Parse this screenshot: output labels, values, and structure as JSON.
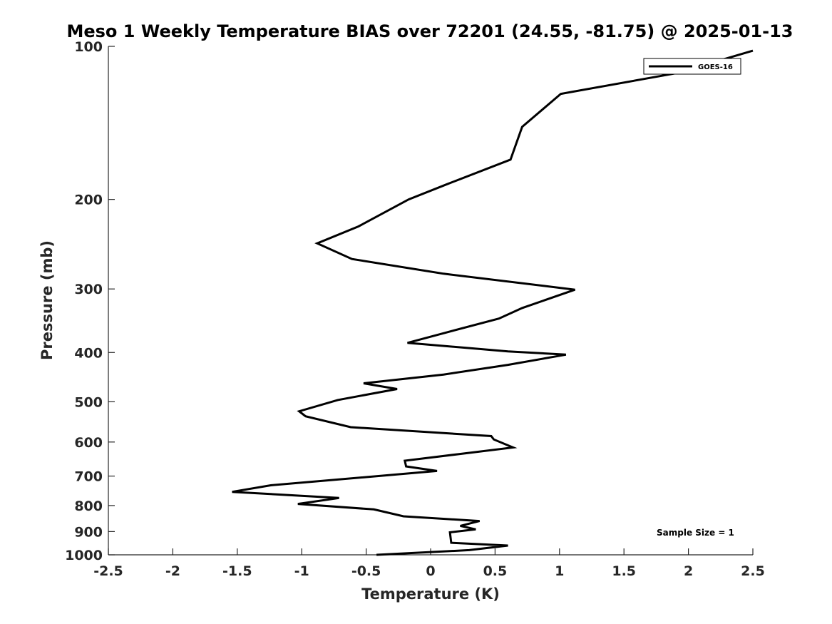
{
  "chart_data": {
    "type": "line",
    "title": "Meso 1 Weekly Temperature BIAS over 72201 (24.55, -81.75) @ 2025-01-13",
    "xlabel": "Temperature (K)",
    "ylabel": "Pressure (mb)",
    "xlim": [
      -2.5,
      2.5
    ],
    "ylim": [
      100,
      1000
    ],
    "yscale": "log",
    "y_reversed": true,
    "grid": false,
    "legend_position": "top-right",
    "x_ticks": [
      -2.5,
      -2,
      -1.5,
      -1,
      -0.5,
      0,
      0.5,
      1,
      1.5,
      2,
      2.5
    ],
    "x_tick_labels": [
      "-2.5",
      "-2",
      "-1.5",
      "-1",
      "-0.5",
      "0",
      "0.5",
      "1",
      "1.5",
      "2",
      "2.5"
    ],
    "y_ticks": [
      100,
      200,
      300,
      400,
      500,
      600,
      700,
      800,
      900,
      1000
    ],
    "y_tick_labels": [
      "100",
      "200",
      "300",
      "400",
      "500",
      "600",
      "700",
      "800",
      "900",
      "1000"
    ],
    "series": [
      {
        "name": "GOES-16",
        "color": "#000000",
        "points": [
          {
            "x": 2.5,
            "y": 102
          },
          {
            "x": 1.9,
            "y": 113
          },
          {
            "x": 1.01,
            "y": 124
          },
          {
            "x": 0.71,
            "y": 144
          },
          {
            "x": 0.62,
            "y": 167
          },
          {
            "x": 0.12,
            "y": 187
          },
          {
            "x": -0.17,
            "y": 200
          },
          {
            "x": -0.56,
            "y": 226
          },
          {
            "x": -0.88,
            "y": 244
          },
          {
            "x": -0.61,
            "y": 262
          },
          {
            "x": 0.1,
            "y": 280
          },
          {
            "x": 1.12,
            "y": 301
          },
          {
            "x": 0.71,
            "y": 327
          },
          {
            "x": 0.53,
            "y": 343
          },
          {
            "x": 0.11,
            "y": 366
          },
          {
            "x": -0.18,
            "y": 383
          },
          {
            "x": 0.6,
            "y": 398
          },
          {
            "x": 1.05,
            "y": 404
          },
          {
            "x": 0.6,
            "y": 423
          },
          {
            "x": 0.1,
            "y": 442
          },
          {
            "x": -0.52,
            "y": 460
          },
          {
            "x": -0.26,
            "y": 472
          },
          {
            "x": -0.72,
            "y": 496
          },
          {
            "x": -1.02,
            "y": 522
          },
          {
            "x": -0.97,
            "y": 534
          },
          {
            "x": -0.62,
            "y": 561
          },
          {
            "x": 0.47,
            "y": 584
          },
          {
            "x": 0.49,
            "y": 593
          },
          {
            "x": 0.64,
            "y": 615
          },
          {
            "x": -0.2,
            "y": 653
          },
          {
            "x": -0.19,
            "y": 670
          },
          {
            "x": 0.05,
            "y": 684
          },
          {
            "x": -1.24,
            "y": 730
          },
          {
            "x": -1.54,
            "y": 752
          },
          {
            "x": -0.71,
            "y": 773
          },
          {
            "x": -1.03,
            "y": 794
          },
          {
            "x": -0.44,
            "y": 814
          },
          {
            "x": -0.21,
            "y": 840
          },
          {
            "x": 0.38,
            "y": 858
          },
          {
            "x": 0.23,
            "y": 877
          },
          {
            "x": 0.35,
            "y": 891
          },
          {
            "x": 0.15,
            "y": 903
          },
          {
            "x": 0.16,
            "y": 947
          },
          {
            "x": 0.6,
            "y": 959
          },
          {
            "x": 0.3,
            "y": 979
          },
          {
            "x": -0.42,
            "y": 1000
          }
        ]
      }
    ],
    "annotations": [
      {
        "text": "Sample Size = 1",
        "position": "bottom-right"
      }
    ]
  }
}
